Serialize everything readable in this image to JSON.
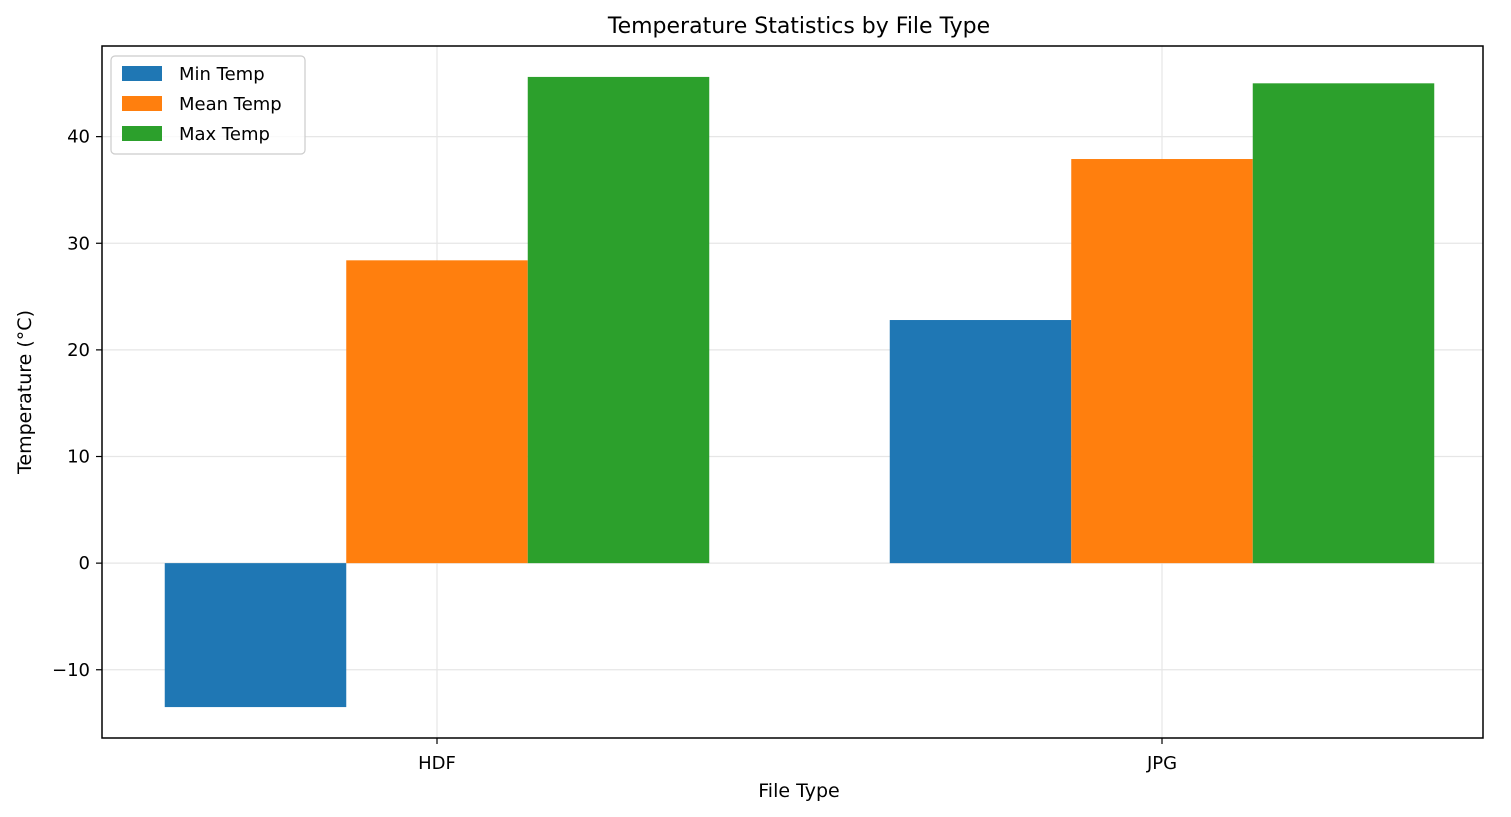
{
  "chart_data": {
    "type": "bar",
    "title": "Temperature Statistics by File Type",
    "xlabel": "File Type",
    "ylabel": "Temperature (°C)",
    "categories": [
      "HDF",
      "JPG"
    ],
    "series": [
      {
        "name": "Min Temp",
        "color": "#1f77b4",
        "values": [
          -13.5,
          22.8
        ]
      },
      {
        "name": "Mean Temp",
        "color": "#ff7f0e",
        "values": [
          28.4,
          37.9
        ]
      },
      {
        "name": "Max Temp",
        "color": "#2ca02c",
        "values": [
          45.6,
          45.0
        ]
      }
    ],
    "ylim": [
      -16.4,
      48.5
    ],
    "yticks": [
      -10,
      0,
      10,
      20,
      30,
      40
    ],
    "ytick_labels": [
      "−10",
      "0",
      "10",
      "20",
      "30",
      "40"
    ],
    "grid": true,
    "legend_position": "upper-left"
  }
}
